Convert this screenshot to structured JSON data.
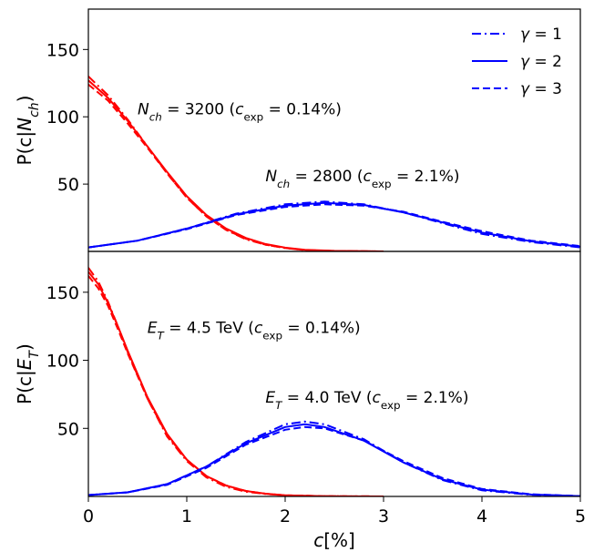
{
  "chart_data": [
    {
      "type": "line",
      "panel": "top",
      "ylabel": "P(c|N_ch)",
      "ylim": [
        0,
        180
      ],
      "xlim": [
        0,
        5
      ],
      "yticks": [
        "50",
        "100",
        "150"
      ],
      "ytick_values": [
        50,
        100,
        150
      ],
      "annotations": [
        {
          "text": "N_ch = 3200 (c_exp = 0.14%)",
          "at_data": [
            0.5,
            102
          ]
        },
        {
          "text": "N_ch = 2800 (c_exp = 2.1%)",
          "at_data": [
            1.8,
            52
          ]
        }
      ],
      "legend": {
        "placement": "top-right",
        "entries": [
          {
            "label": "γ = 1",
            "style": "dashdot",
            "color": "#0000ff"
          },
          {
            "label": "γ = 2",
            "style": "solid",
            "color": "#0000ff"
          },
          {
            "label": "γ = 3",
            "style": "dashed",
            "color": "#0000ff"
          }
        ]
      },
      "series": [
        {
          "group": "N_ch = 3200",
          "gamma": 1,
          "style": "dashdot",
          "color": "#ff0000",
          "x": [
            0,
            0.2,
            0.4,
            0.6,
            0.8,
            1.0,
            1.2,
            1.4,
            1.6,
            1.8,
            2.0,
            2.2,
            2.5,
            3.0
          ],
          "y": [
            130,
            116,
            98,
            78,
            58,
            40,
            26,
            16,
            9,
            5,
            2.5,
            1,
            0.3,
            0
          ]
        },
        {
          "group": "N_ch = 3200",
          "gamma": 2,
          "style": "solid",
          "color": "#ff0000",
          "x": [
            0,
            0.2,
            0.4,
            0.6,
            0.8,
            1.0,
            1.2,
            1.4,
            1.6,
            1.8,
            2.0,
            2.2,
            2.5,
            3.0
          ],
          "y": [
            127,
            114,
            97,
            78,
            59,
            41,
            27,
            17,
            10,
            5.5,
            2.8,
            1.2,
            0.4,
            0
          ]
        },
        {
          "group": "N_ch = 3200",
          "gamma": 3,
          "style": "dashed",
          "color": "#ff0000",
          "x": [
            0,
            0.2,
            0.4,
            0.6,
            0.8,
            1.0,
            1.2,
            1.4,
            1.6,
            1.8,
            2.0,
            2.2,
            2.5,
            3.0
          ],
          "y": [
            124,
            112,
            95,
            77,
            58,
            40,
            26,
            16,
            9.5,
            5,
            2.5,
            1,
            0.3,
            0
          ]
        },
        {
          "group": "N_ch = 2800",
          "gamma": 1,
          "style": "dashdot",
          "color": "#0000ff",
          "x": [
            0,
            0.5,
            1.0,
            1.5,
            2.0,
            2.4,
            2.8,
            3.2,
            3.6,
            4.0,
            4.5,
            5.0
          ],
          "y": [
            3,
            8,
            17,
            28,
            35,
            37,
            35,
            29,
            21,
            13,
            7,
            3
          ]
        },
        {
          "group": "N_ch = 2800",
          "gamma": 2,
          "style": "solid",
          "color": "#0000ff",
          "x": [
            0,
            0.5,
            1.0,
            1.5,
            2.0,
            2.4,
            2.8,
            3.2,
            3.6,
            4.0,
            4.5,
            5.0
          ],
          "y": [
            3,
            8,
            17,
            27.5,
            34,
            36,
            34.5,
            29,
            21.5,
            14,
            7.5,
            3.5
          ]
        },
        {
          "group": "N_ch = 2800",
          "gamma": 3,
          "style": "dashed",
          "color": "#0000ff",
          "x": [
            0,
            0.5,
            1.0,
            1.5,
            2.0,
            2.4,
            2.8,
            3.2,
            3.6,
            4.0,
            4.5,
            5.0
          ],
          "y": [
            3,
            8,
            16.5,
            27,
            33,
            35,
            34,
            29.5,
            22,
            15,
            8,
            4
          ]
        }
      ]
    },
    {
      "type": "line",
      "panel": "bottom",
      "ylabel": "P(c|E_T)",
      "xlabel": "c[%]",
      "ylim": [
        0,
        180
      ],
      "xlim": [
        0,
        5
      ],
      "xticks": [
        "0",
        "1",
        "2",
        "3",
        "4",
        "5"
      ],
      "xtick_values": [
        0,
        1,
        2,
        3,
        4,
        5
      ],
      "yticks": [
        "50",
        "100",
        "150"
      ],
      "ytick_values": [
        50,
        100,
        150
      ],
      "annotations": [
        {
          "text": "E_T = 4.5 TeV (c_exp = 0.14%)",
          "at_data": [
            0.6,
            120
          ]
        },
        {
          "text": "E_T = 4.0 TeV (c_exp = 2.1%)",
          "at_data": [
            1.8,
            69
          ]
        }
      ],
      "series": [
        {
          "group": "E_T = 4.5 TeV",
          "gamma": 1,
          "style": "dashdot",
          "color": "#ff0000",
          "x": [
            0,
            0.1,
            0.2,
            0.3,
            0.4,
            0.6,
            0.8,
            1.0,
            1.2,
            1.4,
            1.6,
            1.8,
            2.0,
            2.4,
            3.0
          ],
          "y": [
            168,
            158,
            143,
            125,
            106,
            72,
            44,
            26,
            14,
            7,
            3.5,
            1.8,
            0.8,
            0.2,
            0
          ]
        },
        {
          "group": "E_T = 4.5 TeV",
          "gamma": 2,
          "style": "solid",
          "color": "#ff0000",
          "x": [
            0,
            0.1,
            0.2,
            0.3,
            0.4,
            0.6,
            0.8,
            1.0,
            1.2,
            1.4,
            1.6,
            1.8,
            2.0,
            2.4,
            3.0
          ],
          "y": [
            165,
            156,
            142,
            125,
            107,
            73,
            46,
            27,
            15,
            8,
            4,
            2,
            0.9,
            0.2,
            0
          ]
        },
        {
          "group": "E_T = 4.5 TeV",
          "gamma": 3,
          "style": "dashed",
          "color": "#ff0000",
          "x": [
            0,
            0.1,
            0.2,
            0.3,
            0.4,
            0.6,
            0.8,
            1.0,
            1.2,
            1.4,
            1.6,
            1.8,
            2.0,
            2.4,
            3.0
          ],
          "y": [
            162,
            153,
            140,
            123,
            105,
            72,
            45,
            27,
            15,
            8,
            4,
            2,
            0.9,
            0.2,
            0
          ]
        },
        {
          "group": "E_T = 4.0 TeV",
          "gamma": 1,
          "style": "dashdot",
          "color": "#0000ff",
          "x": [
            0,
            0.4,
            0.8,
            1.2,
            1.6,
            2.0,
            2.2,
            2.4,
            2.8,
            3.2,
            3.6,
            4.0,
            4.5,
            5.0
          ],
          "y": [
            1,
            3,
            9,
            22,
            40,
            53,
            55,
            53,
            42,
            25,
            12,
            4.5,
            1.2,
            0.2
          ]
        },
        {
          "group": "E_T = 4.0 TeV",
          "gamma": 2,
          "style": "solid",
          "color": "#0000ff",
          "x": [
            0,
            0.4,
            0.8,
            1.2,
            1.6,
            2.0,
            2.2,
            2.4,
            2.8,
            3.2,
            3.6,
            4.0,
            4.5,
            5.0
          ],
          "y": [
            1,
            3,
            9,
            22,
            39,
            51,
            53,
            51,
            41,
            25,
            12.5,
            5,
            1.4,
            0.3
          ]
        },
        {
          "group": "E_T = 4.0 TeV",
          "gamma": 3,
          "style": "dashed",
          "color": "#0000ff",
          "x": [
            0,
            0.4,
            0.8,
            1.2,
            1.6,
            2.0,
            2.2,
            2.4,
            2.8,
            3.2,
            3.6,
            4.0,
            4.5,
            5.0
          ],
          "y": [
            1,
            3,
            8.5,
            21,
            38,
            49,
            51,
            50,
            41,
            26,
            13.5,
            5.5,
            1.6,
            0.3
          ]
        }
      ]
    }
  ]
}
